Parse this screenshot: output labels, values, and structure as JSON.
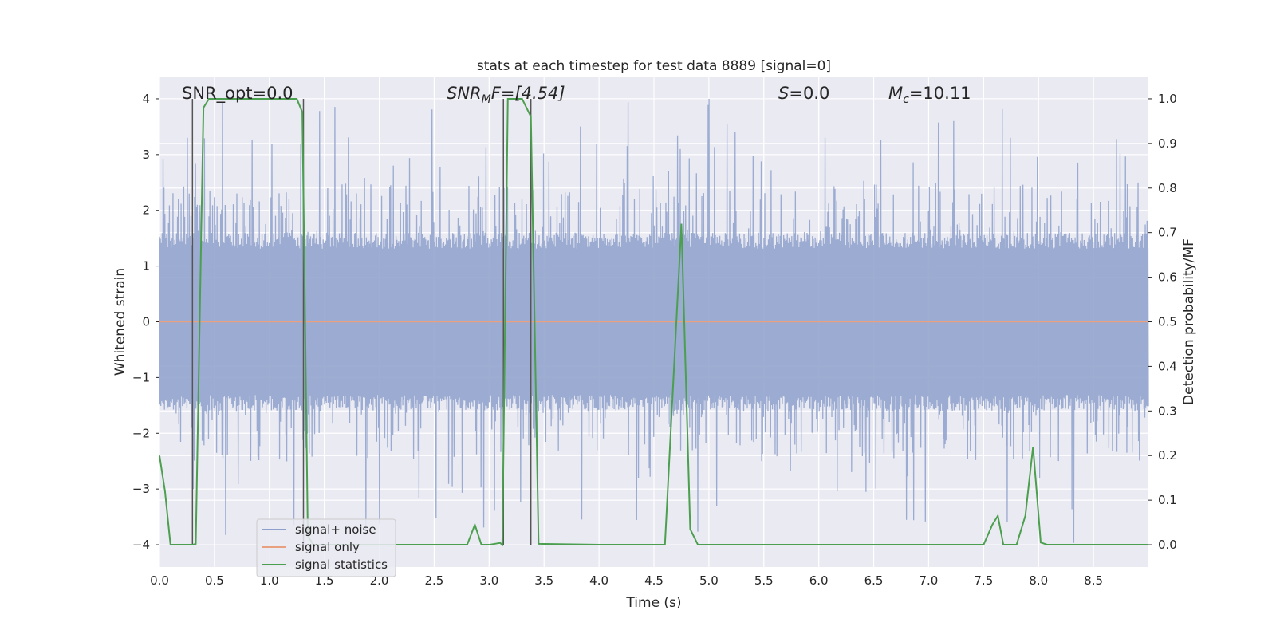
{
  "chart_data": {
    "type": "line",
    "title": "stats at each timestep for test data 8889 [signal=0]",
    "xlabel": "Time (s)",
    "ylabel_left": "Whitened strain",
    "ylabel_right": "Detection probability/MF",
    "xlim": [
      0.0,
      9.0
    ],
    "ylim_left": [
      -4.4,
      4.4
    ],
    "ylim_right": [
      -0.05,
      1.05
    ],
    "x_ticks": [
      "0.0",
      "0.5",
      "1.0",
      "1.5",
      "2.0",
      "2.5",
      "3.0",
      "3.5",
      "4.0",
      "4.5",
      "5.0",
      "5.5",
      "6.0",
      "6.5",
      "7.0",
      "7.5",
      "8.0",
      "8.5"
    ],
    "y_ticks_left": [
      "4",
      "3",
      "2",
      "1",
      "0",
      "−1",
      "−2",
      "−3",
      "−4"
    ],
    "y_ticks_right": [
      "1.0",
      "0.9",
      "0.8",
      "0.7",
      "0.6",
      "0.5",
      "0.4",
      "0.3",
      "0.2",
      "0.1",
      "0.0"
    ],
    "grid": true,
    "legend_position": "lower-left",
    "legend": [
      "signal+ noise",
      "signal only",
      "signal statistics"
    ],
    "annotations": {
      "snr_opt": "SNR_opt=0.0",
      "snr_mf_base": "SNR",
      "snr_mf_sub": "M",
      "snr_mf_rest": "F=[4.54]",
      "s_var": "S",
      "s_rest": "=0.0",
      "mc_var": "M",
      "mc_sub": "c",
      "mc_rest": "=10.11"
    },
    "colors": {
      "noise": "#8da0cb",
      "signal_only": "#e8a07e",
      "statistics": "#4c9f4f",
      "vlines": "#555555",
      "background": "#eaeaf2",
      "grid": "#ffffff"
    },
    "series": [
      {
        "name": "signal+ noise",
        "axis": "left",
        "description": "whitened strain noise, roughly within -1.7..1.7 with spikes up to about ±4",
        "envelope": 1.6,
        "spike_max": 4.0
      },
      {
        "name": "signal only",
        "axis": "left",
        "x": [
          0.0,
          9.0
        ],
        "y": [
          0.0,
          0.0
        ]
      },
      {
        "name": "signal statistics",
        "axis": "right",
        "x": [
          0.0,
          0.05,
          0.1,
          0.2,
          0.3,
          0.33,
          0.4,
          0.45,
          1.0,
          1.25,
          1.3,
          1.32,
          1.35,
          1.4,
          2.0,
          2.8,
          2.87,
          2.93,
          3.0,
          3.1,
          3.12,
          3.17,
          3.22,
          3.3,
          3.38,
          3.45,
          4.0,
          4.6,
          4.75,
          4.83,
          4.9,
          5.0,
          6.0,
          7.0,
          7.5,
          7.58,
          7.63,
          7.68,
          7.8,
          7.88,
          7.95,
          8.02,
          8.08,
          8.5,
          9.0
        ],
        "y": [
          0.2,
          0.12,
          0.0,
          0.0,
          0.0,
          0.002,
          0.98,
          1.0,
          1.0,
          1.0,
          0.97,
          0.6,
          0.02,
          0.0,
          0.0,
          0.0,
          0.045,
          0.0,
          0.0,
          0.004,
          0.0,
          1.0,
          1.0,
          1.0,
          0.96,
          0.002,
          0.0,
          0.0,
          0.72,
          0.035,
          0.0,
          0.0,
          0.0,
          0.0,
          0.0,
          0.045,
          0.065,
          0.0,
          0.0,
          0.065,
          0.22,
          0.005,
          0.0,
          0.0,
          0.0
        ]
      }
    ],
    "vertical_lines_x": [
      0.3,
      1.31,
      3.13,
      3.38
    ]
  }
}
